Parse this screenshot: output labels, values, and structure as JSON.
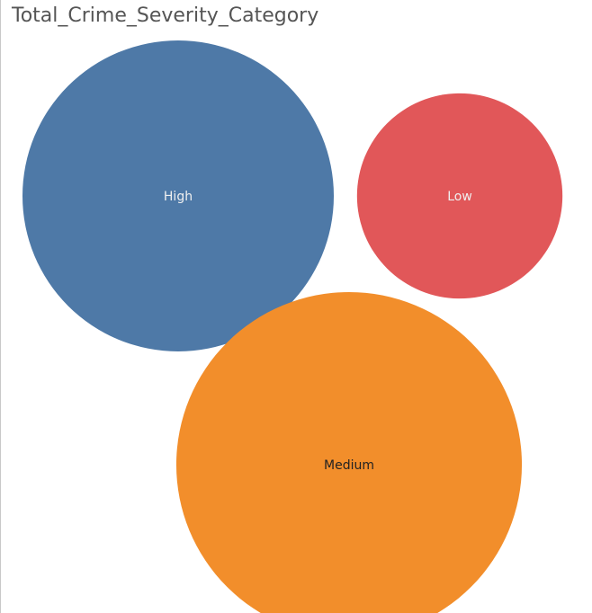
{
  "sheet": {
    "title": "Total_Crime_Severity_Category"
  },
  "chart_data": {
    "type": "packed-bubble",
    "title": "Total_Crime_Severity_Category",
    "categories": [
      "High",
      "Low",
      "Medium"
    ],
    "relative_size": [
      1.0,
      0.66,
      1.11
    ],
    "colors": [
      "#4e79a7",
      "#e15759",
      "#f28e2b"
    ],
    "label_colors": [
      "#f0f0f0",
      "#f0f0f0",
      "#222222"
    ]
  }
}
